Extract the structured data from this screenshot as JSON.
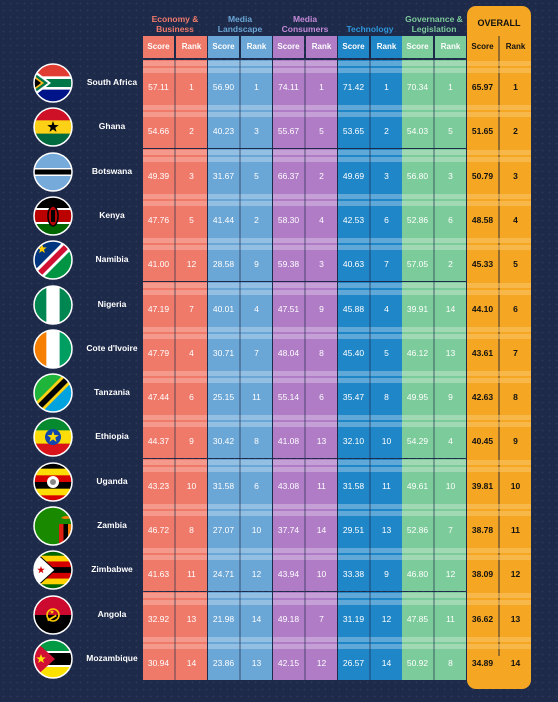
{
  "columns": [
    {
      "title": "Economy & Business",
      "color": "#f07a6a",
      "light": "#f8b3a8",
      "title_color": "#f07a6a"
    },
    {
      "title": "Media Landscape",
      "color": "#6aa6d6",
      "light": "#b4d3ec",
      "title_color": "#6aa6d6"
    },
    {
      "title": "Media Consumers",
      "color": "#b07cc6",
      "light": "#d7bde3",
      "title_color": "#c48ad8"
    },
    {
      "title": "Technology",
      "color": "#1f86c8",
      "light": "#93c5e6",
      "title_color": "#2e97db"
    },
    {
      "title": "Governance & Legislation",
      "color": "#7ccb9a",
      "light": "#bfe6cc",
      "title_color": "#7ccb9a"
    }
  ],
  "overall": {
    "title": "OVERALL",
    "color": "#f5a623"
  },
  "sub_labels": {
    "score": "Score",
    "rank": "Rank"
  },
  "rows": [
    {
      "country": "South Africa",
      "flag": "south-africa",
      "cats": [
        [
          "57.11",
          "1"
        ],
        [
          "56.90",
          "1"
        ],
        [
          "74.11",
          "1"
        ],
        [
          "71.42",
          "1"
        ],
        [
          "70.34",
          "1"
        ]
      ],
      "overall": [
        "65.97",
        "1"
      ]
    },
    {
      "country": "Ghana",
      "flag": "ghana",
      "cats": [
        [
          "54.66",
          "2"
        ],
        [
          "40.23",
          "3"
        ],
        [
          "55.67",
          "5"
        ],
        [
          "53.65",
          "2"
        ],
        [
          "54.03",
          "5"
        ]
      ],
      "overall": [
        "51.65",
        "2"
      ]
    },
    {
      "country": "Botswana",
      "flag": "botswana",
      "cats": [
        [
          "49.39",
          "3"
        ],
        [
          "31.67",
          "5"
        ],
        [
          "66.37",
          "2"
        ],
        [
          "49.69",
          "3"
        ],
        [
          "56.80",
          "3"
        ]
      ],
      "overall": [
        "50.79",
        "3"
      ]
    },
    {
      "country": "Kenya",
      "flag": "kenya",
      "cats": [
        [
          "47.76",
          "5"
        ],
        [
          "41.44",
          "2"
        ],
        [
          "58.30",
          "4"
        ],
        [
          "42.53",
          "6"
        ],
        [
          "52.86",
          "6"
        ]
      ],
      "overall": [
        "48.58",
        "4"
      ]
    },
    {
      "country": "Namibia",
      "flag": "namibia",
      "cats": [
        [
          "41.00",
          "12"
        ],
        [
          "28.58",
          "9"
        ],
        [
          "59.38",
          "3"
        ],
        [
          "40.63",
          "7"
        ],
        [
          "57.05",
          "2"
        ]
      ],
      "overall": [
        "45.33",
        "5"
      ]
    },
    {
      "country": "Nigeria",
      "flag": "nigeria",
      "cats": [
        [
          "47.19",
          "7"
        ],
        [
          "40.01",
          "4"
        ],
        [
          "47.51",
          "9"
        ],
        [
          "45.88",
          "4"
        ],
        [
          "39.91",
          "14"
        ]
      ],
      "overall": [
        "44.10",
        "6"
      ]
    },
    {
      "country": "Cote d'Ivoire",
      "flag": "cote-divoire",
      "cats": [
        [
          "47.79",
          "4"
        ],
        [
          "30.71",
          "7"
        ],
        [
          "48.04",
          "8"
        ],
        [
          "45.40",
          "5"
        ],
        [
          "46.12",
          "13"
        ]
      ],
      "overall": [
        "43.61",
        "7"
      ]
    },
    {
      "country": "Tanzania",
      "flag": "tanzania",
      "cats": [
        [
          "47.44",
          "6"
        ],
        [
          "25.15",
          "11"
        ],
        [
          "55.14",
          "6"
        ],
        [
          "35.47",
          "8"
        ],
        [
          "49.95",
          "9"
        ]
      ],
      "overall": [
        "42.63",
        "8"
      ]
    },
    {
      "country": "Ethiopia",
      "flag": "ethiopia",
      "cats": [
        [
          "44.37",
          "9"
        ],
        [
          "30.42",
          "8"
        ],
        [
          "41.08",
          "13"
        ],
        [
          "32.10",
          "10"
        ],
        [
          "54.29",
          "4"
        ]
      ],
      "overall": [
        "40.45",
        "9"
      ]
    },
    {
      "country": "Uganda",
      "flag": "uganda",
      "cats": [
        [
          "43.23",
          "10"
        ],
        [
          "31.58",
          "6"
        ],
        [
          "43.08",
          "11"
        ],
        [
          "31.58",
          "11"
        ],
        [
          "49.61",
          "10"
        ]
      ],
      "overall": [
        "39.81",
        "10"
      ]
    },
    {
      "country": "Zambia",
      "flag": "zambia",
      "cats": [
        [
          "46.72",
          "8"
        ],
        [
          "27.07",
          "10"
        ],
        [
          "37.74",
          "14"
        ],
        [
          "29.51",
          "13"
        ],
        [
          "52.86",
          "7"
        ]
      ],
      "overall": [
        "38.78",
        "11"
      ]
    },
    {
      "country": "Zimbabwe",
      "flag": "zimbabwe",
      "cats": [
        [
          "41.63",
          "11"
        ],
        [
          "24.71",
          "12"
        ],
        [
          "43.94",
          "10"
        ],
        [
          "33.38",
          "9"
        ],
        [
          "46.80",
          "12"
        ]
      ],
      "overall": [
        "38.09",
        "12"
      ]
    },
    {
      "country": "Angola",
      "flag": "angola",
      "cats": [
        [
          "32.92",
          "13"
        ],
        [
          "21.98",
          "14"
        ],
        [
          "49.18",
          "7"
        ],
        [
          "31.19",
          "12"
        ],
        [
          "47.85",
          "11"
        ]
      ],
      "overall": [
        "36.62",
        "13"
      ]
    },
    {
      "country": "Mozambique",
      "flag": "mozambique",
      "cats": [
        [
          "30.94",
          "14"
        ],
        [
          "23.86",
          "13"
        ],
        [
          "42.15",
          "12"
        ],
        [
          "26.57",
          "14"
        ],
        [
          "50.92",
          "8"
        ]
      ],
      "overall": [
        "34.89",
        "14"
      ]
    }
  ],
  "chart_data": {
    "type": "table",
    "columns": [
      "Economy & Business",
      "Media Landscape",
      "Media Consumers",
      "Technology",
      "Governance & Legislation",
      "OVERALL"
    ],
    "sub_columns": [
      "Score",
      "Rank"
    ],
    "categories": [
      "South Africa",
      "Ghana",
      "Botswana",
      "Kenya",
      "Namibia",
      "Nigeria",
      "Cote d'Ivoire",
      "Tanzania",
      "Ethiopia",
      "Uganda",
      "Zambia",
      "Zimbabwe",
      "Angola",
      "Mozambique"
    ],
    "series": [
      {
        "name": "Economy & Business",
        "scores": [
          57.11,
          54.66,
          49.39,
          47.76,
          41.0,
          47.19,
          47.79,
          47.44,
          44.37,
          43.23,
          46.72,
          41.63,
          32.92,
          30.94
        ],
        "ranks": [
          1,
          2,
          3,
          5,
          12,
          7,
          4,
          6,
          9,
          10,
          8,
          11,
          13,
          14
        ]
      },
      {
        "name": "Media Landscape",
        "scores": [
          56.9,
          40.23,
          31.67,
          41.44,
          28.58,
          40.01,
          30.71,
          25.15,
          30.42,
          31.58,
          27.07,
          24.71,
          21.98,
          23.86
        ],
        "ranks": [
          1,
          3,
          5,
          2,
          9,
          4,
          7,
          11,
          8,
          6,
          10,
          12,
          14,
          13
        ]
      },
      {
        "name": "Media Consumers",
        "scores": [
          74.11,
          55.67,
          66.37,
          58.3,
          59.38,
          47.51,
          48.04,
          55.14,
          41.08,
          43.08,
          37.74,
          43.94,
          49.18,
          42.15
        ],
        "ranks": [
          1,
          5,
          2,
          4,
          3,
          9,
          8,
          6,
          13,
          11,
          14,
          10,
          7,
          12
        ]
      },
      {
        "name": "Technology",
        "scores": [
          71.42,
          53.65,
          49.69,
          42.53,
          40.63,
          45.88,
          45.4,
          35.47,
          32.1,
          31.58,
          29.51,
          33.38,
          31.19,
          26.57
        ],
        "ranks": [
          1,
          2,
          3,
          6,
          7,
          4,
          5,
          8,
          10,
          11,
          13,
          9,
          12,
          14
        ]
      },
      {
        "name": "Governance & Legislation",
        "scores": [
          70.34,
          54.03,
          56.8,
          52.86,
          57.05,
          39.91,
          46.12,
          49.95,
          54.29,
          49.61,
          52.86,
          46.8,
          47.85,
          50.92
        ],
        "ranks": [
          1,
          5,
          3,
          6,
          2,
          14,
          13,
          9,
          4,
          10,
          7,
          12,
          11,
          8
        ]
      },
      {
        "name": "OVERALL",
        "scores": [
          65.97,
          51.65,
          50.79,
          48.58,
          45.33,
          44.1,
          43.61,
          42.63,
          40.45,
          39.81,
          38.78,
          38.09,
          36.62,
          34.89
        ],
        "ranks": [
          1,
          2,
          3,
          4,
          5,
          6,
          7,
          8,
          9,
          10,
          11,
          12,
          13,
          14
        ]
      }
    ]
  }
}
